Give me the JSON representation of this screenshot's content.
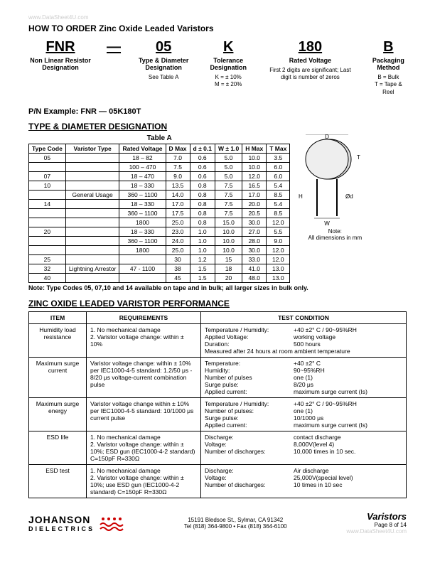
{
  "watermark_top": "www.DataSheet4U.com",
  "title": "HOW TO ORDER Zinc Oxide Leaded Varistors",
  "order": {
    "cols": [
      {
        "big": "FNR",
        "label": "Non Linear Resistor Designation",
        "desc": ""
      },
      {
        "big": "—",
        "label": "",
        "desc": ""
      },
      {
        "big": "05",
        "label": "Type & Diameter Designation",
        "desc": "See Table A"
      },
      {
        "big": "K",
        "label": "Tolerance Designation",
        "desc": "K = ± 10%\nM = ± 20%"
      },
      {
        "big": "180",
        "label": "Rated Voltage",
        "desc": "First 2 digits are significant; Last digit is number of zeros"
      },
      {
        "big": "B",
        "label": "Packaging Method",
        "desc": "B = Bulk\nT = Tape & Reel"
      }
    ]
  },
  "pn_example": "P/N Example:  FNR — 05K180T",
  "type_diam_heading": "TYPE & DIAMETER DESIGNATION",
  "tableA_title": "Table A",
  "tableA": {
    "headers": [
      "Type Code",
      "Varistor Type",
      "Rated Voltage",
      "D Max",
      "d ± 0.1",
      "W ± 1.0",
      "H Max",
      "T Max"
    ],
    "rows": [
      [
        "05",
        "",
        "18 – 82",
        "7.0",
        "0.6",
        "5.0",
        "10.0",
        "3.5"
      ],
      [
        "",
        "",
        "100 – 470",
        "7.5",
        "0.6",
        "5.0",
        "10.0",
        "6.0"
      ],
      [
        "07",
        "",
        "18 – 470",
        "9.0",
        "0.6",
        "5.0",
        "12.0",
        "6.0"
      ],
      [
        "10",
        "",
        "18 – 330",
        "13.5",
        "0.8",
        "7.5",
        "16.5",
        "5.4"
      ],
      [
        "",
        "General Usage",
        "360 – 1100",
        "14.0",
        "0.8",
        "7.5",
        "17.0",
        "8.5"
      ],
      [
        "14",
        "",
        "18 – 330",
        "17.0",
        "0.8",
        "7.5",
        "20.0",
        "5.4"
      ],
      [
        "",
        "",
        "360 – 1100",
        "17.5",
        "0.8",
        "7.5",
        "20.5",
        "8.5"
      ],
      [
        "",
        "",
        "1800",
        "25.0",
        "0.8",
        "15.0",
        "30.0",
        "12.0"
      ],
      [
        "20",
        "",
        "18 – 330",
        "23.0",
        "1.0",
        "10.0",
        "27.0",
        "5.5"
      ],
      [
        "",
        "",
        "360 – 1100",
        "24.0",
        "1.0",
        "10.0",
        "28.0",
        "9.0"
      ],
      [
        "",
        "",
        "1800",
        "25.0",
        "1.0",
        "10.0",
        "30.0",
        "12.0"
      ],
      [
        "25",
        "",
        "",
        "30",
        "1.2",
        "15",
        "33.0",
        "12.0"
      ],
      [
        "32",
        "Lightning Arrestor",
        "47 - 1100",
        "38",
        "1.5",
        "18",
        "41.0",
        "13.0"
      ],
      [
        "40",
        "",
        "",
        "45",
        "1.5",
        "20",
        "48.0",
        "13.0"
      ]
    ],
    "diagram_note1": "Note:",
    "diagram_note2": "All dimensions in mm"
  },
  "note": "Note:   Type Codes 05, 07,10 and 14 available on tape and in bulk; all larger sizes in bulk only.",
  "perf_heading": "ZINC OXIDE LEADED VARISTOR PERFORMANCE",
  "perf": {
    "headers": [
      "ITEM",
      "REQUIREMENTS",
      "TEST CONDITION"
    ],
    "rows": [
      {
        "item": "Humidity load resistance",
        "req": "1. No mechanical damage\n2. Varistor voltage change: within ± 10%",
        "tc": [
          [
            "Temperature / Humidity:",
            "+40 ±2° C / 90~95%RH"
          ],
          [
            "Applied Voltage:",
            "working voltage"
          ],
          [
            "Duration:",
            "500 hours"
          ],
          [
            "Measured after 24 hours at room ambient temperature",
            ""
          ]
        ]
      },
      {
        "item": "Maximum surge current",
        "req": "Varistor voltage change: within ± 10% per IEC1000-4-5 standard: 1.2/50 μs - 8/20 μs voltage-current combination pulse",
        "tc": [
          [
            "Temperature:",
            "+40 ±2° C"
          ],
          [
            "Humidity:",
            "90~95%RH"
          ],
          [
            "Number of pulses",
            "one (1)"
          ],
          [
            "Surge pulse:",
            "8/20 μs"
          ],
          [
            "Applied current:",
            "maximum surge current (Is)"
          ]
        ]
      },
      {
        "item": "Maximum surge energy",
        "req": "Varistor voltage change within ± 10% per IEC1000-4-5 standard: 10/1000 μs current pulse",
        "tc": [
          [
            "Temperature / Humidity:",
            "+40 ±2° C / 90~95%RH"
          ],
          [
            "Number of pulses:",
            "one (1)"
          ],
          [
            "Surge pulse:",
            "10/1000 μs"
          ],
          [
            "Applied current:",
            "maximum surge current (Is)"
          ]
        ]
      },
      {
        "item": "ESD life",
        "req": "1. No mechanical damage\n2. Varistor voltage change: within ± 10%; ESD gun (IEC1000-4-2 standard) C=150pF R=330Ω",
        "tc": [
          [
            "Discharge:",
            "contact discharge"
          ],
          [
            "Voltage:",
            "8,000V(level 4)"
          ],
          [
            "Number of discharges:",
            "10,000 times in 10 sec."
          ]
        ]
      },
      {
        "item": "ESD test",
        "req": "1. No mechanical damage\n2. Varistor voltage change: within ± 10%; use ESD gun (IEC1000-4-2 standard) C=150pF R=330Ω",
        "tc": [
          [
            "Discharge:",
            "Air discharge"
          ],
          [
            "Voltage:",
            "25,000V(special level)"
          ],
          [
            "Number of discharges:",
            "10 times in 10 sec"
          ]
        ]
      }
    ]
  },
  "footer": {
    "logo_main": "JOHANSON",
    "logo_sub": "DIELECTRICS",
    "addr": "15191 Bledsoe St., Sylmar, CA 91342",
    "phone": "Tel (818) 364-9800 • Fax (818) 364-6100",
    "right_title": "Varistors",
    "right_page": "Page 8 of  14",
    "watermark": "www.DataSheet4U.com"
  }
}
